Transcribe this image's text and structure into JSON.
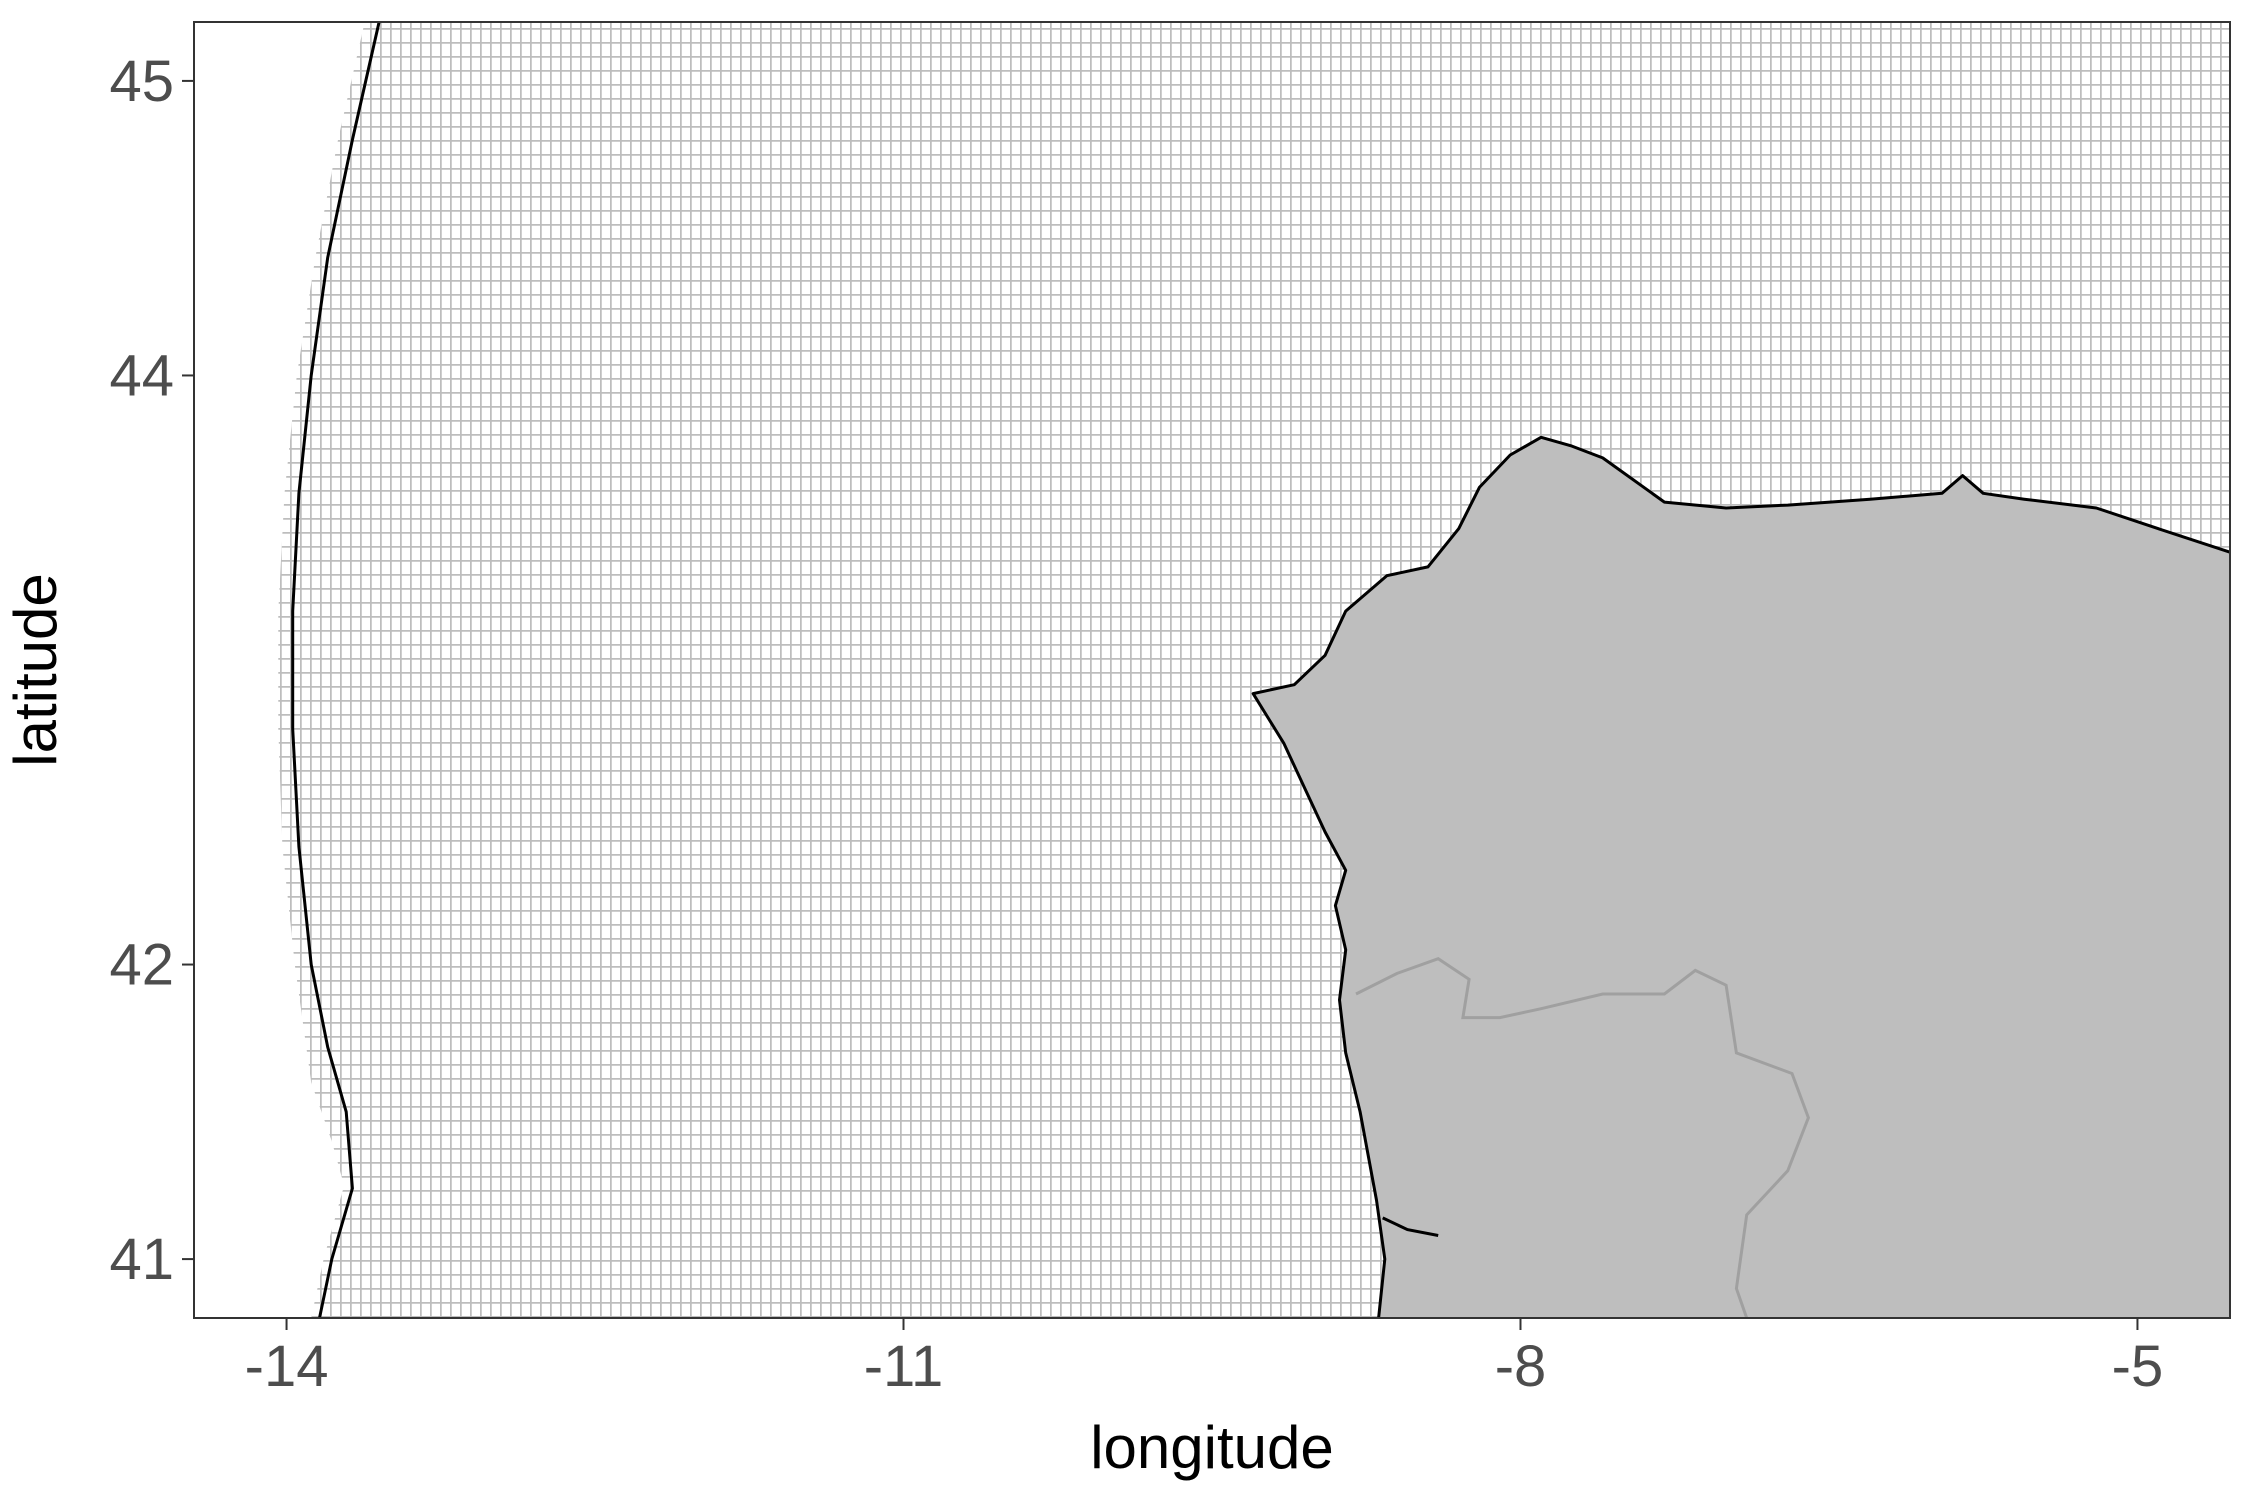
{
  "chart_data": {
    "type": "map",
    "xlabel": "longitude",
    "ylabel": "latitude",
    "xlim": [
      -14.45,
      -4.55
    ],
    "ylim": [
      40.8,
      45.2
    ],
    "x_ticks": [
      -14,
      -11,
      -8,
      -5
    ],
    "x_tick_labels": [
      "-14",
      "-11",
      "-8",
      "-5"
    ],
    "y_ticks": [
      41,
      42,
      44,
      45
    ],
    "y_tick_labels": [
      "41",
      "42",
      "44",
      "45"
    ],
    "grid_cell_deg": 0.05,
    "colors": {
      "land": "#bebebe",
      "grid_line": "#bdbdbd",
      "coastline": "#000000",
      "border": "#a0a0a0",
      "frame": "#333333",
      "tick_text": "#4d4d4d"
    },
    "layers": {
      "grid_west_edge": [
        [
          -13.62,
          45.2
        ],
        [
          -13.75,
          44.8
        ],
        [
          -13.86,
          44.4
        ],
        [
          -13.95,
          44.0
        ],
        [
          -14.01,
          43.6
        ],
        [
          -14.04,
          43.2
        ],
        [
          -14.04,
          42.8
        ],
        [
          -14.02,
          42.4
        ],
        [
          -13.96,
          42.0
        ],
        [
          -13.88,
          41.6
        ],
        [
          -13.78,
          41.4
        ],
        [
          -13.72,
          41.25
        ],
        [
          -13.82,
          41.0
        ],
        [
          -13.88,
          40.8
        ]
      ],
      "eez_boundary": [
        [
          -13.55,
          45.2
        ],
        [
          -13.68,
          44.8
        ],
        [
          -13.8,
          44.4
        ],
        [
          -13.88,
          44.0
        ],
        [
          -13.94,
          43.6
        ],
        [
          -13.97,
          43.2
        ],
        [
          -13.97,
          42.8
        ],
        [
          -13.94,
          42.4
        ],
        [
          -13.88,
          42.0
        ],
        [
          -13.8,
          41.72
        ],
        [
          -13.71,
          41.5
        ],
        [
          -13.68,
          41.24
        ],
        [
          -13.78,
          41.0
        ],
        [
          -13.84,
          40.8
        ]
      ],
      "coastline": [
        [
          -4.55,
          43.4
        ],
        [
          -4.9,
          43.48
        ],
        [
          -5.2,
          43.55
        ],
        [
          -5.55,
          43.58
        ],
        [
          -5.75,
          43.6
        ],
        [
          -5.85,
          43.66
        ],
        [
          -5.95,
          43.6
        ],
        [
          -6.3,
          43.58
        ],
        [
          -6.7,
          43.56
        ],
        [
          -7.0,
          43.55
        ],
        [
          -7.3,
          43.57
        ],
        [
          -7.6,
          43.72
        ],
        [
          -7.75,
          43.76
        ],
        [
          -7.9,
          43.79
        ],
        [
          -8.05,
          43.73
        ],
        [
          -8.2,
          43.62
        ],
        [
          -8.3,
          43.48
        ],
        [
          -8.45,
          43.35
        ],
        [
          -8.65,
          43.32
        ],
        [
          -8.85,
          43.2
        ],
        [
          -8.95,
          43.05
        ],
        [
          -9.1,
          42.95
        ],
        [
          -9.3,
          42.92
        ],
        [
          -9.15,
          42.75
        ],
        [
          -9.05,
          42.6
        ],
        [
          -8.95,
          42.45
        ],
        [
          -8.85,
          42.32
        ],
        [
          -8.9,
          42.2
        ],
        [
          -8.85,
          42.05
        ],
        [
          -8.88,
          41.88
        ],
        [
          -8.85,
          41.7
        ],
        [
          -8.78,
          41.5
        ],
        [
          -8.7,
          41.2
        ],
        [
          -8.66,
          41.0
        ],
        [
          -8.69,
          40.8
        ]
      ],
      "land": [
        [
          -4.55,
          43.4
        ],
        [
          -4.9,
          43.48
        ],
        [
          -5.2,
          43.55
        ],
        [
          -5.55,
          43.58
        ],
        [
          -5.75,
          43.6
        ],
        [
          -5.85,
          43.66
        ],
        [
          -5.95,
          43.6
        ],
        [
          -6.3,
          43.58
        ],
        [
          -6.7,
          43.56
        ],
        [
          -7.0,
          43.55
        ],
        [
          -7.3,
          43.57
        ],
        [
          -7.6,
          43.72
        ],
        [
          -7.75,
          43.76
        ],
        [
          -7.9,
          43.79
        ],
        [
          -8.05,
          43.73
        ],
        [
          -8.2,
          43.62
        ],
        [
          -8.3,
          43.48
        ],
        [
          -8.45,
          43.35
        ],
        [
          -8.65,
          43.32
        ],
        [
          -8.85,
          43.2
        ],
        [
          -8.95,
          43.05
        ],
        [
          -9.1,
          42.95
        ],
        [
          -9.3,
          42.92
        ],
        [
          -9.15,
          42.75
        ],
        [
          -9.05,
          42.6
        ],
        [
          -8.95,
          42.45
        ],
        [
          -8.85,
          42.32
        ],
        [
          -8.9,
          42.2
        ],
        [
          -8.85,
          42.05
        ],
        [
          -8.88,
          41.88
        ],
        [
          -8.85,
          41.7
        ],
        [
          -8.78,
          41.5
        ],
        [
          -8.7,
          41.2
        ],
        [
          -8.66,
          41.0
        ],
        [
          -8.69,
          40.8
        ],
        [
          -4.55,
          40.8
        ]
      ],
      "douro_estuary": [
        [
          -8.67,
          41.14
        ],
        [
          -8.55,
          41.1
        ],
        [
          -8.4,
          41.08
        ]
      ],
      "border_galicia_portugal": [
        [
          -8.8,
          41.9
        ],
        [
          -8.6,
          41.97
        ],
        [
          -8.4,
          42.02
        ],
        [
          -8.25,
          41.95
        ],
        [
          -8.28,
          41.82
        ],
        [
          -8.1,
          41.82
        ],
        [
          -7.9,
          41.85
        ],
        [
          -7.6,
          41.9
        ],
        [
          -7.3,
          41.9
        ],
        [
          -7.15,
          41.98
        ],
        [
          -7.0,
          41.93
        ],
        [
          -6.95,
          41.7
        ],
        [
          -6.68,
          41.63
        ],
        [
          -6.6,
          41.48
        ],
        [
          -6.7,
          41.3
        ],
        [
          -6.9,
          41.15
        ],
        [
          -6.95,
          40.9
        ],
        [
          -6.9,
          40.8
        ]
      ]
    }
  }
}
